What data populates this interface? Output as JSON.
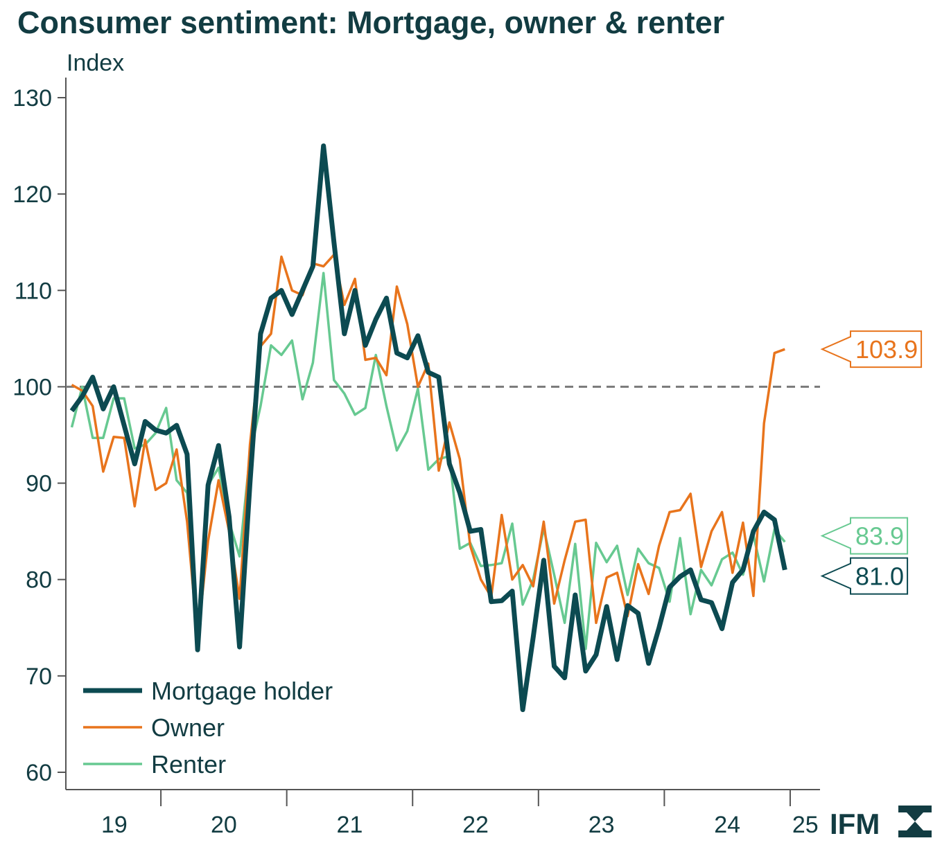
{
  "chart_data": {
    "type": "line",
    "title": "Consumer sentiment: Mortgage, owner & renter",
    "y_label": "Index",
    "logo": "IFM",
    "ylim": [
      60,
      130
    ],
    "yticks": [
      60,
      70,
      80,
      90,
      100,
      110,
      120,
      130
    ],
    "xlim": [
      19.245,
      25.237
    ],
    "xticks": [
      20,
      21,
      22,
      23,
      24,
      25
    ],
    "xtick_labels": [
      {
        "value": 19.63,
        "label": "19"
      },
      {
        "value": 20.5,
        "label": "20"
      },
      {
        "value": 21.5,
        "label": "21"
      },
      {
        "value": 22.5,
        "label": "22"
      },
      {
        "value": 23.5,
        "label": "23"
      },
      {
        "value": 24.5,
        "label": "24"
      },
      {
        "value": 25.12,
        "label": "25"
      }
    ],
    "reference_line": 100,
    "grid": false,
    "legend": "lower left",
    "x": [
      19.292,
      19.375,
      19.458,
      19.542,
      19.625,
      19.708,
      19.792,
      19.875,
      19.958,
      20.042,
      20.125,
      20.208,
      20.292,
      20.375,
      20.458,
      20.542,
      20.625,
      20.708,
      20.792,
      20.875,
      20.958,
      21.042,
      21.125,
      21.208,
      21.292,
      21.375,
      21.458,
      21.542,
      21.625,
      21.708,
      21.792,
      21.875,
      21.958,
      22.042,
      22.125,
      22.208,
      22.292,
      22.375,
      22.458,
      22.542,
      22.625,
      22.708,
      22.792,
      22.875,
      22.958,
      23.042,
      23.125,
      23.208,
      23.292,
      23.375,
      23.458,
      23.542,
      23.625,
      23.708,
      23.792,
      23.875,
      23.958,
      24.042,
      24.125,
      24.208,
      24.292,
      24.375,
      24.458,
      24.542,
      24.625,
      24.708,
      24.792,
      24.875,
      24.958
    ],
    "series": [
      {
        "name": "Mortgage holder",
        "color": "#0c4a51",
        "width": 7,
        "last_value_label": "81.0",
        "values": [
          97.5,
          99,
          101,
          97.7,
          100,
          96,
          92,
          96.4,
          95.5,
          95.2,
          96,
          93,
          72.7,
          89.8,
          93.9,
          86.5,
          73,
          90,
          105.5,
          109.2,
          110,
          107.5,
          110,
          112.5,
          125,
          115,
          105.5,
          110,
          104.3,
          107,
          109.2,
          103.5,
          103,
          105.3,
          101.5,
          101,
          92,
          89,
          85,
          85.2,
          77.7,
          77.8,
          78.8,
          66.5,
          74,
          82,
          71,
          69.8,
          78.4,
          70.5,
          72.2,
          77.2,
          71.7,
          77.3,
          76.5,
          71.3,
          75,
          79.2,
          80.3,
          81,
          77.9,
          77.6,
          74.9,
          79.7,
          81,
          85,
          87,
          86.2,
          81
        ]
      },
      {
        "name": "Owner",
        "color": "#e8741c",
        "width": 3.5,
        "last_value_label": "103.9",
        "values": [
          100.2,
          99.6,
          98,
          91.2,
          94.8,
          94.7,
          87.6,
          94.5,
          89.3,
          90,
          93.5,
          86,
          73.8,
          84,
          90.3,
          85,
          78,
          94,
          104.2,
          105.5,
          113.5,
          110,
          109.5,
          112.8,
          112.5,
          113.7,
          108.5,
          111.2,
          102.8,
          103,
          101.2,
          110.4,
          106.5,
          100,
          102.4,
          91.3,
          96.3,
          92.5,
          83.5,
          80,
          78.2,
          86.7,
          80,
          81.5,
          79.3,
          86,
          77.5,
          82,
          86,
          86.2,
          75.5,
          80.2,
          80.7,
          76.2,
          81.6,
          78.5,
          83.5,
          87,
          87.2,
          88.9,
          81.3,
          85,
          87,
          80.7,
          85.9,
          78.3,
          96.2,
          103.5,
          103.9
        ]
      },
      {
        "name": "Renter",
        "color": "#67c991",
        "width": 3.5,
        "last_value_label": "83.9",
        "values": [
          95.8,
          100,
          94.7,
          94.7,
          98.8,
          98.8,
          93.6,
          94,
          95.2,
          97.8,
          90.3,
          89,
          75,
          89.8,
          91.6,
          86,
          82.4,
          93,
          98,
          104.3,
          103.3,
          104.8,
          98.7,
          102.5,
          111.8,
          100.7,
          99.3,
          97.1,
          97.8,
          103.3,
          98,
          93.4,
          95.4,
          99.8,
          91.4,
          92.5,
          92.8,
          83.2,
          83.8,
          81.4,
          81.5,
          81.7,
          85.8,
          77.4,
          80,
          85.3,
          80.5,
          75.5,
          83.7,
          72.8,
          83.8,
          81.8,
          83.5,
          78.4,
          83.2,
          81.7,
          81.2,
          77.7,
          84.3,
          76.4,
          81,
          79.4,
          82.1,
          82.8,
          80.5,
          84.6,
          79.8,
          85.2,
          83.9
        ]
      }
    ]
  }
}
